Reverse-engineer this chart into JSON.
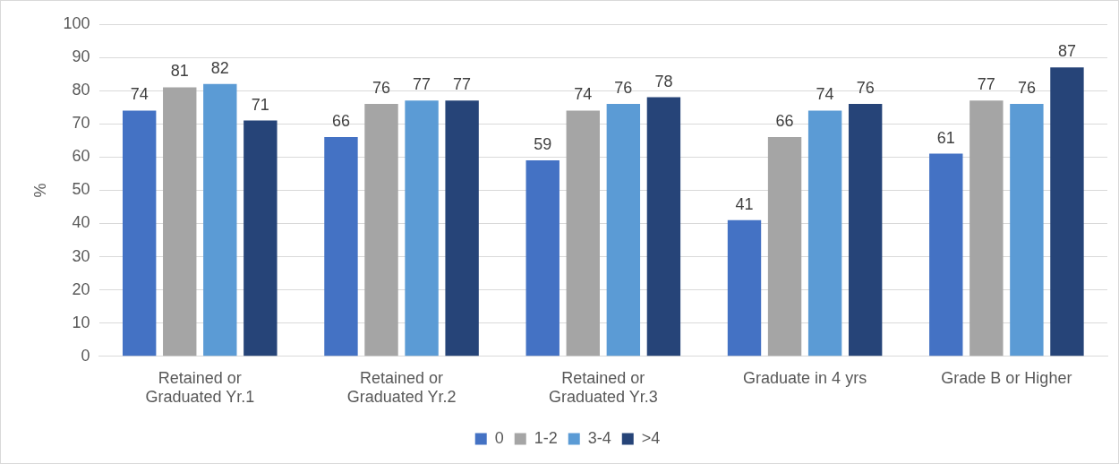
{
  "chart_data": {
    "type": "bar",
    "ylabel": "%",
    "categories": [
      "Retained or Graduated Yr.1",
      "Retained or Graduated Yr.2",
      "Retained or Graduated Yr.3",
      "Graduate in 4 yrs",
      "Grade B or Higher"
    ],
    "series": [
      {
        "name": "0",
        "color": "#4472c4",
        "values": [
          74,
          66,
          59,
          41,
          61
        ]
      },
      {
        "name": "1-2",
        "color": "#a5a5a5",
        "values": [
          81,
          76,
          74,
          66,
          77
        ]
      },
      {
        "name": "3-4",
        "color": "#5b9bd5",
        "values": [
          82,
          77,
          76,
          74,
          76
        ]
      },
      {
        "name": ">4",
        "color": "#264478",
        "values": [
          71,
          77,
          78,
          76,
          87
        ]
      }
    ],
    "ylim": [
      0,
      100
    ],
    "yticks": [
      0,
      10,
      20,
      30,
      40,
      50,
      60,
      70,
      80,
      90,
      100
    ],
    "grid": "y",
    "legend": "bottom",
    "data_labels": true
  }
}
